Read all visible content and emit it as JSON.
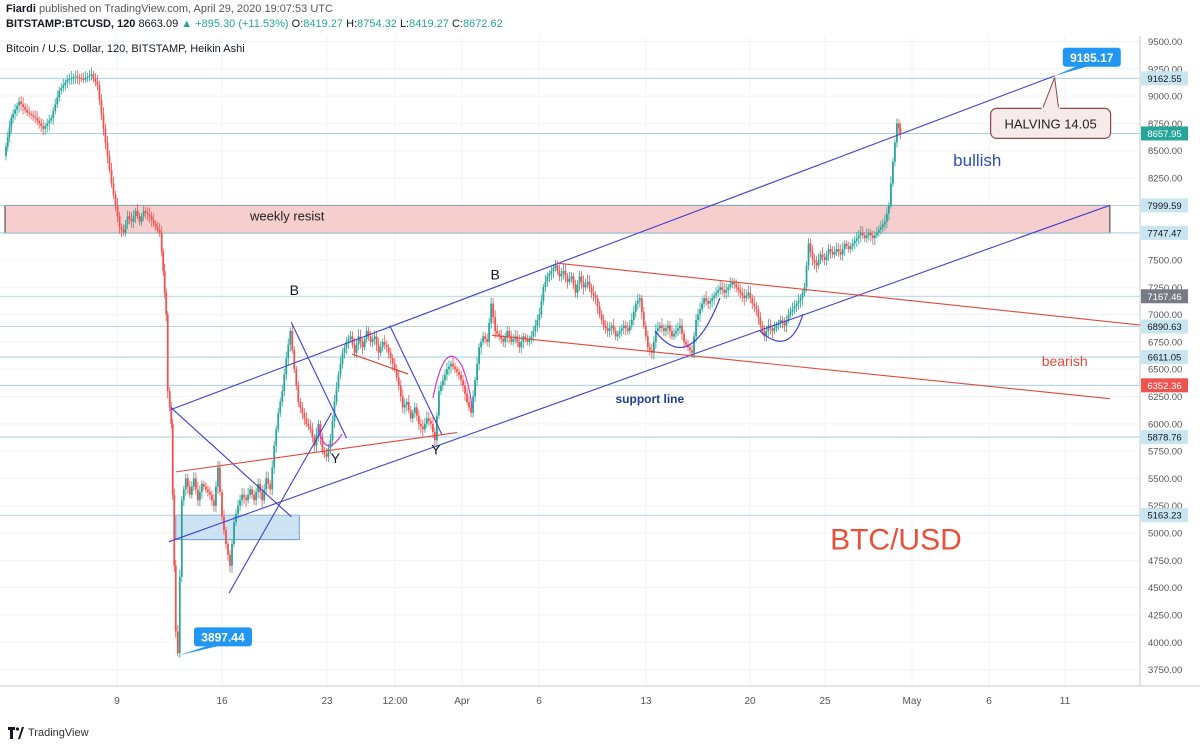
{
  "header": {
    "author": "Fiardi",
    "published": "published on TradingView.com, April 29, 2020 19:07:53 UTC",
    "symbol": "BITSTAMP:BTCUSD, 120",
    "last_price": "8663.09",
    "change": "+895.30 (+11.53%)",
    "o_label": "O:",
    "o_value": "8419.27",
    "h_label": "H:",
    "h_value": "8754.32",
    "l_label": "L:",
    "l_value": "8419.27",
    "c_label": "C:",
    "c_value": "8672.62"
  },
  "footer": {
    "brand": "TradingView"
  },
  "colors": {
    "up": "#26a69a",
    "down": "#ef5350",
    "channel": "#3f3fd1",
    "bearish": "#e04a3c",
    "label_blue": "#2196f3",
    "resist_fill": "#f4c6c6",
    "support_box": "#bcd8ee"
  },
  "chart_data": {
    "type": "candlestick",
    "title": "Bitcoin / U.S. Dollar, 120, BITSTAMP, Heikin Ashi",
    "ylim": [
      3600,
      9550
    ],
    "x_domain": [
      0,
      1135
    ],
    "y_ticks": [
      "9500.00",
      "9250.00",
      "9000.00",
      "8750.00",
      "8500.00",
      "8250.00",
      "8000.00",
      "7750.00",
      "7500.00",
      "7250.00",
      "7000.00",
      "6750.00",
      "6500.00",
      "6250.00",
      "6000.00",
      "5750.00",
      "5500.00",
      "5250.00",
      "5000.00",
      "4750.00",
      "4500.00",
      "4250.00",
      "4000.00",
      "3750.00"
    ],
    "y_tick_values": [
      9500,
      9250,
      9000,
      8750,
      8500,
      8250,
      8000,
      7750,
      7500,
      7250,
      7000,
      6750,
      6500,
      6250,
      6000,
      5750,
      5500,
      5250,
      5000,
      4750,
      4500,
      4250,
      4000,
      3750
    ],
    "x_ticks": [
      {
        "label": "9",
        "x": 117
      },
      {
        "label": "16",
        "x": 222
      },
      {
        "label": "23",
        "x": 327
      },
      {
        "label": "12:00",
        "x": 395
      },
      {
        "label": "Apr",
        "x": 462
      },
      {
        "label": "6",
        "x": 539
      },
      {
        "label": "13",
        "x": 646
      },
      {
        "label": "20",
        "x": 750
      },
      {
        "label": "25",
        "x": 825
      },
      {
        "label": "May",
        "x": 912
      },
      {
        "label": "6",
        "x": 989
      },
      {
        "label": "11",
        "x": 1065
      }
    ],
    "price_lines": [
      {
        "label": "9162.55",
        "value": 9162.55,
        "bg": "#c9e6f0",
        "fg": "#131722"
      },
      {
        "label": "8657.95",
        "value": 8657.95,
        "bg": "#26a69a",
        "fg": "#ffffff"
      },
      {
        "label": "7999.59",
        "value": 7999.59,
        "bg": "#c9e6f0",
        "fg": "#131722"
      },
      {
        "label": "7747.47",
        "value": 7747.47,
        "bg": "#c9e6f0",
        "fg": "#131722"
      },
      {
        "label": "7167.46",
        "value": 7167.46,
        "bg": "#787b86",
        "fg": "#ffffff"
      },
      {
        "label": "6890.63",
        "value": 6890.63,
        "bg": "#c9e6f0",
        "fg": "#131722"
      },
      {
        "label": "6611.05",
        "value": 6611.05,
        "bg": "#c9e6f0",
        "fg": "#131722"
      },
      {
        "label": "6352.36",
        "value": 6352.36,
        "bg": "#ef5350",
        "fg": "#ffffff"
      },
      {
        "label": "5878.76",
        "value": 5878.76,
        "bg": "#c9e6f0",
        "fg": "#131722"
      },
      {
        "label": "5163.23",
        "value": 5163.23,
        "bg": "#c9e6f0",
        "fg": "#131722"
      }
    ],
    "price_path": [
      [
        5,
        8450
      ],
      [
        12,
        8800
      ],
      [
        20,
        8950
      ],
      [
        28,
        8850
      ],
      [
        36,
        8800
      ],
      [
        44,
        8700
      ],
      [
        52,
        8800
      ],
      [
        60,
        9050
      ],
      [
        68,
        9150
      ],
      [
        76,
        9180
      ],
      [
        84,
        9150
      ],
      [
        92,
        9200
      ],
      [
        98,
        9100
      ],
      [
        104,
        8700
      ],
      [
        108,
        8450
      ],
      [
        112,
        8200
      ],
      [
        116,
        8000
      ],
      [
        120,
        7800
      ],
      [
        124,
        7750
      ],
      [
        128,
        7900
      ],
      [
        132,
        7850
      ],
      [
        136,
        7950
      ],
      [
        140,
        7850
      ],
      [
        144,
        7950
      ],
      [
        150,
        7900
      ],
      [
        156,
        7800
      ],
      [
        160,
        7750
      ],
      [
        163,
        7400
      ],
      [
        166,
        7000
      ],
      [
        168,
        6300
      ],
      [
        171,
        6000
      ],
      [
        174,
        4700
      ],
      [
        176,
        4100
      ],
      [
        178,
        3900
      ],
      [
        182,
        5300
      ],
      [
        186,
        5500
      ],
      [
        190,
        5350
      ],
      [
        194,
        5500
      ],
      [
        198,
        5300
      ],
      [
        202,
        5450
      ],
      [
        206,
        5400
      ],
      [
        210,
        5350
      ],
      [
        214,
        5250
      ],
      [
        218,
        5600
      ],
      [
        222,
        5150
      ],
      [
        226,
        4900
      ],
      [
        230,
        4700
      ],
      [
        234,
        5100
      ],
      [
        238,
        5250
      ],
      [
        242,
        5350
      ],
      [
        246,
        5300
      ],
      [
        250,
        5400
      ],
      [
        254,
        5300
      ],
      [
        258,
        5450
      ],
      [
        262,
        5300
      ],
      [
        266,
        5500
      ],
      [
        270,
        5400
      ],
      [
        274,
        5800
      ],
      [
        278,
        6100
      ],
      [
        282,
        6300
      ],
      [
        286,
        6600
      ],
      [
        290,
        6850
      ],
      [
        294,
        6500
      ],
      [
        298,
        6200
      ],
      [
        302,
        6100
      ],
      [
        306,
        6000
      ],
      [
        310,
        5950
      ],
      [
        314,
        5800
      ],
      [
        318,
        6000
      ],
      [
        322,
        5750
      ],
      [
        326,
        5700
      ],
      [
        330,
        5850
      ],
      [
        334,
        6200
      ],
      [
        338,
        6450
      ],
      [
        342,
        6650
      ],
      [
        346,
        6750
      ],
      [
        350,
        6800
      ],
      [
        354,
        6650
      ],
      [
        358,
        6800
      ],
      [
        362,
        6700
      ],
      [
        366,
        6850
      ],
      [
        370,
        6750
      ],
      [
        374,
        6800
      ],
      [
        378,
        6650
      ],
      [
        382,
        6750
      ],
      [
        386,
        6700
      ],
      [
        390,
        6600
      ],
      [
        394,
        6500
      ],
      [
        398,
        6350
      ],
      [
        402,
        6150
      ],
      [
        406,
        6200
      ],
      [
        410,
        6050
      ],
      [
        414,
        6150
      ],
      [
        418,
        6000
      ],
      [
        422,
        5950
      ],
      [
        426,
        6050
      ],
      [
        430,
        6000
      ],
      [
        434,
        5850
      ],
      [
        438,
        6300
      ],
      [
        442,
        6400
      ],
      [
        446,
        6500
      ],
      [
        450,
        6550
      ],
      [
        454,
        6500
      ],
      [
        458,
        6450
      ],
      [
        462,
        6350
      ],
      [
        466,
        6200
      ],
      [
        470,
        6100
      ],
      [
        474,
        6400
      ],
      [
        478,
        6700
      ],
      [
        482,
        6800
      ],
      [
        486,
        6750
      ],
      [
        490,
        7100
      ],
      [
        494,
        6850
      ],
      [
        498,
        6800
      ],
      [
        502,
        6750
      ],
      [
        506,
        6850
      ],
      [
        510,
        6750
      ],
      [
        514,
        6800
      ],
      [
        518,
        6700
      ],
      [
        522,
        6800
      ],
      [
        526,
        6750
      ],
      [
        530,
        6800
      ],
      [
        534,
        6900
      ],
      [
        538,
        7000
      ],
      [
        542,
        7250
      ],
      [
        546,
        7350
      ],
      [
        550,
        7400
      ],
      [
        554,
        7450
      ],
      [
        558,
        7350
      ],
      [
        562,
        7400
      ],
      [
        566,
        7300
      ],
      [
        570,
        7350
      ],
      [
        574,
        7200
      ],
      [
        578,
        7350
      ],
      [
        582,
        7250
      ],
      [
        586,
        7300
      ],
      [
        590,
        7200
      ],
      [
        594,
        7150
      ],
      [
        598,
        7000
      ],
      [
        602,
        6900
      ],
      [
        606,
        6850
      ],
      [
        610,
        6900
      ],
      [
        614,
        6800
      ],
      [
        618,
        6850
      ],
      [
        622,
        6900
      ],
      [
        626,
        6850
      ],
      [
        630,
        6950
      ],
      [
        634,
        7100
      ],
      [
        638,
        7150
      ],
      [
        642,
        6900
      ],
      [
        646,
        6700
      ],
      [
        650,
        6650
      ],
      [
        654,
        6850
      ],
      [
        658,
        6900
      ],
      [
        662,
        6850
      ],
      [
        666,
        6900
      ],
      [
        670,
        6800
      ],
      [
        674,
        6850
      ],
      [
        678,
        6900
      ],
      [
        682,
        6750
      ],
      [
        686,
        6700
      ],
      [
        690,
        6650
      ],
      [
        694,
        6950
      ],
      [
        698,
        7050
      ],
      [
        702,
        7150
      ],
      [
        706,
        7100
      ],
      [
        710,
        7150
      ],
      [
        714,
        7200
      ],
      [
        718,
        7250
      ],
      [
        722,
        7200
      ],
      [
        726,
        7250
      ],
      [
        730,
        7300
      ],
      [
        734,
        7250
      ],
      [
        738,
        7200
      ],
      [
        742,
        7150
      ],
      [
        746,
        7200
      ],
      [
        750,
        7100
      ],
      [
        754,
        7050
      ],
      [
        758,
        6900
      ],
      [
        762,
        6800
      ],
      [
        766,
        6900
      ],
      [
        770,
        6850
      ],
      [
        774,
        6900
      ],
      [
        778,
        6950
      ],
      [
        782,
        6900
      ],
      [
        786,
        7000
      ],
      [
        790,
        7050
      ],
      [
        794,
        7100
      ],
      [
        798,
        7150
      ],
      [
        802,
        7250
      ],
      [
        806,
        7650
      ],
      [
        810,
        7500
      ],
      [
        814,
        7450
      ],
      [
        818,
        7550
      ],
      [
        822,
        7500
      ],
      [
        826,
        7600
      ],
      [
        830,
        7550
      ],
      [
        834,
        7600
      ],
      [
        838,
        7550
      ],
      [
        842,
        7650
      ],
      [
        846,
        7600
      ],
      [
        850,
        7650
      ],
      [
        854,
        7700
      ],
      [
        858,
        7750
      ],
      [
        862,
        7700
      ],
      [
        866,
        7750
      ],
      [
        870,
        7700
      ],
      [
        874,
        7750
      ],
      [
        878,
        7800
      ],
      [
        882,
        7850
      ],
      [
        886,
        8000
      ],
      [
        890,
        8400
      ],
      [
        894,
        8750
      ],
      [
        897,
        8660
      ]
    ],
    "lines": [
      {
        "name": "channel-upper",
        "from": [
          170,
          6130
        ],
        "to": [
          1050,
          9185
        ],
        "color": "#3f3fd1"
      },
      {
        "name": "channel-lower",
        "from": [
          168,
          4920
        ],
        "to": [
          1105,
          8000
        ],
        "color": "#3f3fd1"
      },
      {
        "name": "bearish-upper",
        "from": [
          555,
          7470
        ],
        "to": [
          1140,
          6900
        ],
        "color": "#e04a3c"
      },
      {
        "name": "bearish-lower",
        "from": [
          490,
          6810
        ],
        "to": [
          1105,
          6230
        ],
        "color": "#e04a3c"
      },
      {
        "name": "abc-line-1",
        "from": [
          170,
          6150
        ],
        "to": [
          290,
          5150
        ],
        "color": "#3f3fd1"
      },
      {
        "name": "abc-line-2",
        "from": [
          228,
          4450
        ],
        "to": [
          330,
          6100
        ],
        "color": "#3f3fd1"
      },
      {
        "name": "abc-line-3",
        "from": [
          290,
          6930
        ],
        "to": [
          345,
          5870
        ],
        "color": "#3f3fd1"
      },
      {
        "name": "abc-line-4",
        "from": [
          388,
          6900
        ],
        "to": [
          440,
          5900
        ],
        "color": "#3f3fd1"
      },
      {
        "name": "red-line-1",
        "from": [
          175,
          5560
        ],
        "to": [
          455,
          5920
        ],
        "color": "#e04a3c"
      }
    ],
    "zones": [
      {
        "name": "weekly-resist-zone",
        "x0": 5,
        "x1": 1105,
        "y0": 7747,
        "y1": 7999,
        "label": "weekly resist"
      },
      {
        "name": "support-box",
        "x0": 175,
        "x1": 298,
        "y0": 4940,
        "y1": 5163
      }
    ],
    "annotations": [
      {
        "name": "label-b-1",
        "text": "B",
        "x": 293,
        "y": 7180
      },
      {
        "name": "label-b-2",
        "text": "B",
        "x": 493,
        "y": 7320
      },
      {
        "name": "label-y-1",
        "text": "Y",
        "x": 334,
        "y": 5640
      },
      {
        "name": "label-y-2",
        "text": "Y",
        "x": 434,
        "y": 5720
      },
      {
        "name": "label-bullish",
        "text": "bullish",
        "x": 973,
        "y": 8360
      },
      {
        "name": "label-bearish",
        "text": "bearish",
        "x": 1060,
        "y": 6530
      },
      {
        "name": "label-support-line",
        "text": "support line",
        "x": 647,
        "y": 6190
      },
      {
        "name": "label-btcusd",
        "text": "BTC/USD",
        "x": 892,
        "y": 4850
      }
    ],
    "callouts": [
      {
        "name": "callout-high",
        "text": "9185.17",
        "x": 1087,
        "y": 9355,
        "target": [
          1050,
          9185
        ]
      },
      {
        "name": "callout-low",
        "text": "3897.44",
        "x": 222,
        "y": 4050,
        "target": [
          178,
          3880
        ]
      },
      {
        "name": "callout-halving",
        "text": "HALVING 14.05",
        "x": 1046,
        "y": 8750,
        "target": [
          1050,
          9170
        ]
      }
    ]
  }
}
